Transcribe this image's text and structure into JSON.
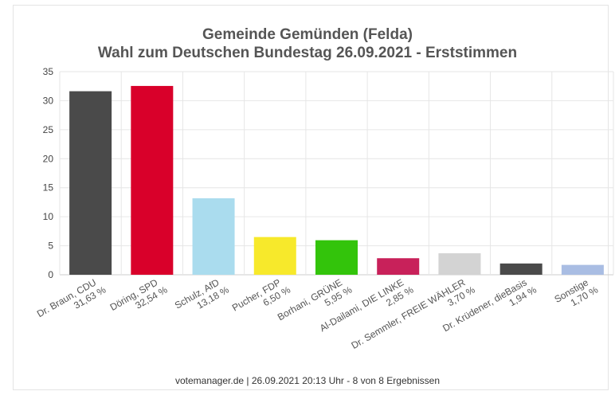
{
  "chart_data": {
    "type": "bar",
    "title": "Gemeinde Gemünden (Felda)",
    "subtitle": "Wahl zum Deutschen Bundestag 26.09.2021  - Erststimmen",
    "xlabel": "",
    "ylabel": "",
    "ylim": [
      0,
      35
    ],
    "yticks": [
      0,
      5,
      10,
      15,
      20,
      25,
      30,
      35
    ],
    "grid": true,
    "categories": [
      "Dr. Braun, CDU",
      "Döring, SPD",
      "Schulz, AfD",
      "Pucher, FDP",
      "Borhani, GRÜNE",
      "Al-Dailami, DIE LINKE",
      "Dr. Semmler, FREIE WÄHLER",
      "Dr. Krüdener, dieBasis",
      "Sonstige"
    ],
    "value_labels": [
      "31,63 %",
      "32,54 %",
      "13,18 %",
      "6,50 %",
      "5,95 %",
      "2,85 %",
      "3,70 %",
      "1,94 %",
      "1,70 %"
    ],
    "values": [
      31.63,
      32.54,
      13.18,
      6.5,
      5.95,
      2.85,
      3.7,
      1.94,
      1.7
    ],
    "colors": [
      "#4a4a4a",
      "#d9002a",
      "#aadcee",
      "#f7e92b",
      "#33c40b",
      "#c8215a",
      "#d3d3d3",
      "#4a4a4a",
      "#a9bde3"
    ]
  },
  "footer": "votemanager.de | 26.09.2021 20:13 Uhr - 8 von 8 Ergebnissen"
}
